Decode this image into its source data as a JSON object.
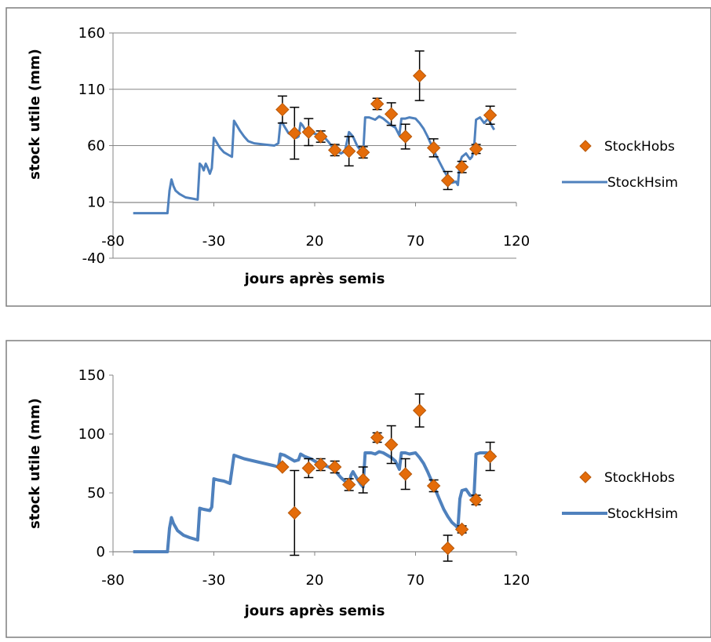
{
  "colors": {
    "obs": "#E46C0A",
    "obs_edge": "#B7580A",
    "sim": "#4F81BD",
    "grid": "#868686",
    "frame": "#7F7F7F",
    "error": "#000000"
  },
  "chart_data": [
    {
      "type": "line",
      "title": "",
      "xlabel": "jours après semis",
      "ylabel": "stock utile (mm)",
      "xlim": [
        -80,
        120
      ],
      "ylim": [
        -40,
        160
      ],
      "xticks": [
        -80,
        -30,
        20,
        70,
        120
      ],
      "yticks": [
        -40,
        10,
        60,
        110,
        160
      ],
      "grid": "horizontal",
      "legend_position": "right",
      "series": [
        {
          "name": "StockHobs",
          "kind": "scatter",
          "points": [
            {
              "x": 4,
              "y": 92,
              "err": 12
            },
            {
              "x": 10,
              "y": 71,
              "err": 23
            },
            {
              "x": 17,
              "y": 72,
              "err": 12
            },
            {
              "x": 23,
              "y": 68,
              "err": 5
            },
            {
              "x": 30,
              "y": 56,
              "err": 5
            },
            {
              "x": 37,
              "y": 55,
              "err": 13
            },
            {
              "x": 44,
              "y": 54,
              "err": 5
            },
            {
              "x": 51,
              "y": 97,
              "err": 5
            },
            {
              "x": 58,
              "y": 88,
              "err": 10
            },
            {
              "x": 65,
              "y": 68,
              "err": 11
            },
            {
              "x": 72,
              "y": 122,
              "err": 22
            },
            {
              "x": 79,
              "y": 58,
              "err": 8
            },
            {
              "x": 86,
              "y": 29,
              "err": 8
            },
            {
              "x": 93,
              "y": 41,
              "err": 5
            },
            {
              "x": 100,
              "y": 57,
              "err": 4
            },
            {
              "x": 107,
              "y": 87,
              "err": 8
            }
          ]
        },
        {
          "name": "StockHsim",
          "kind": "line",
          "points": [
            [
              -70,
              0
            ],
            [
              -53,
              0
            ],
            [
              -52,
              20
            ],
            [
              -51,
              30
            ],
            [
              -50,
              24
            ],
            [
              -49,
              20
            ],
            [
              -47,
              17
            ],
            [
              -44,
              14
            ],
            [
              -41,
              13
            ],
            [
              -38,
              12
            ],
            [
              -37,
              44
            ],
            [
              -36,
              42
            ],
            [
              -35,
              38
            ],
            [
              -34,
              44
            ],
            [
              -33,
              40
            ],
            [
              -32,
              35
            ],
            [
              -31,
              40
            ],
            [
              -30,
              67
            ],
            [
              -29,
              64
            ],
            [
              -27,
              58
            ],
            [
              -25,
              54
            ],
            [
              -23,
              52
            ],
            [
              -21,
              50
            ],
            [
              -20,
              82
            ],
            [
              -19,
              79
            ],
            [
              -17,
              73
            ],
            [
              -15,
              68
            ],
            [
              -13,
              64
            ],
            [
              -10,
              62
            ],
            [
              -5,
              61
            ],
            [
              0,
              60
            ],
            [
              2,
              62
            ],
            [
              3,
              80
            ],
            [
              4,
              80
            ],
            [
              5,
              77
            ],
            [
              7,
              71
            ],
            [
              9,
              69
            ],
            [
              10,
              70
            ],
            [
              11,
              67
            ],
            [
              12,
              68
            ],
            [
              13,
              80
            ],
            [
              14,
              78
            ],
            [
              15,
              75
            ],
            [
              17,
              73
            ],
            [
              19,
              71
            ],
            [
              21,
              70
            ],
            [
              23,
              69
            ],
            [
              25,
              67
            ],
            [
              27,
              63
            ],
            [
              29,
              58
            ],
            [
              31,
              55
            ],
            [
              33,
              53
            ],
            [
              35,
              55
            ],
            [
              37,
              72
            ],
            [
              39,
              68
            ],
            [
              41,
              60
            ],
            [
              43,
              55
            ],
            [
              44,
              52
            ],
            [
              45,
              85
            ],
            [
              47,
              85
            ],
            [
              50,
              83
            ],
            [
              52,
              86
            ],
            [
              54,
              84
            ],
            [
              56,
              81
            ],
            [
              58,
              78
            ],
            [
              60,
              76
            ],
            [
              62,
              69
            ],
            [
              63,
              84
            ],
            [
              65,
              84
            ],
            [
              67,
              85
            ],
            [
              70,
              84
            ],
            [
              72,
              80
            ],
            [
              74,
              75
            ],
            [
              76,
              68
            ],
            [
              78,
              60
            ],
            [
              80,
              52
            ],
            [
              82,
              45
            ],
            [
              84,
              38
            ],
            [
              86,
              32
            ],
            [
              88,
              27
            ],
            [
              90,
              28
            ],
            [
              91,
              25
            ],
            [
              92,
              45
            ],
            [
              93,
              50
            ],
            [
              95,
              53
            ],
            [
              97,
              48
            ],
            [
              98,
              50
            ],
            [
              99,
              57
            ],
            [
              100,
              83
            ],
            [
              102,
              85
            ],
            [
              104,
              80
            ],
            [
              106,
              84
            ],
            [
              108,
              77
            ],
            [
              109,
              74
            ]
          ]
        }
      ]
    },
    {
      "type": "line",
      "title": "",
      "xlabel": "jours après semis",
      "ylabel": "stock utile (mm)",
      "xlim": [
        -80,
        120
      ],
      "ylim": [
        0,
        150
      ],
      "xticks": [
        -80,
        -30,
        20,
        70,
        120
      ],
      "yticks": [
        0,
        50,
        100,
        150
      ],
      "grid": "none",
      "legend_position": "right",
      "series": [
        {
          "name": "StockHobs",
          "kind": "scatter",
          "points": [
            {
              "x": 4,
              "y": 72,
              "err": 0
            },
            {
              "x": 10,
              "y": 33,
              "err": 36
            },
            {
              "x": 17,
              "y": 71,
              "err": 8
            },
            {
              "x": 23,
              "y": 74,
              "err": 5
            },
            {
              "x": 30,
              "y": 72,
              "err": 5
            },
            {
              "x": 37,
              "y": 57,
              "err": 5
            },
            {
              "x": 44,
              "y": 61,
              "err": 11
            },
            {
              "x": 51,
              "y": 97,
              "err": 4
            },
            {
              "x": 58,
              "y": 91,
              "err": 16
            },
            {
              "x": 65,
              "y": 66,
              "err": 13
            },
            {
              "x": 72,
              "y": 120,
              "err": 14
            },
            {
              "x": 79,
              "y": 56,
              "err": 5
            },
            {
              "x": 86,
              "y": 3,
              "err": 11
            },
            {
              "x": 93,
              "y": 19,
              "err": 3
            },
            {
              "x": 100,
              "y": 44,
              "err": 4
            },
            {
              "x": 107,
              "y": 81,
              "err": 12
            }
          ]
        },
        {
          "name": "StockHsim",
          "kind": "line",
          "points": [
            [
              -70,
              0
            ],
            [
              -53,
              0
            ],
            [
              -52,
              20
            ],
            [
              -51,
              29
            ],
            [
              -50,
              24
            ],
            [
              -48,
              18
            ],
            [
              -45,
              14
            ],
            [
              -42,
              12
            ],
            [
              -38,
              10
            ],
            [
              -37,
              37
            ],
            [
              -35,
              36
            ],
            [
              -32,
              35
            ],
            [
              -31,
              38
            ],
            [
              -30,
              62
            ],
            [
              -28,
              61
            ],
            [
              -25,
              60
            ],
            [
              -22,
              58
            ],
            [
              -20,
              82
            ],
            [
              -15,
              79
            ],
            [
              -10,
              77
            ],
            [
              -5,
              75
            ],
            [
              0,
              73
            ],
            [
              2,
              72
            ],
            [
              3,
              83
            ],
            [
              5,
              82
            ],
            [
              8,
              79
            ],
            [
              10,
              77
            ],
            [
              12,
              78
            ],
            [
              13,
              83
            ],
            [
              15,
              81
            ],
            [
              18,
              79
            ],
            [
              20,
              77
            ],
            [
              22,
              75
            ],
            [
              25,
              73
            ],
            [
              27,
              72
            ],
            [
              29,
              70
            ],
            [
              31,
              67
            ],
            [
              33,
              63
            ],
            [
              35,
              60
            ],
            [
              37,
              57
            ],
            [
              38,
              65
            ],
            [
              39,
              68
            ],
            [
              41,
              62
            ],
            [
              43,
              57
            ],
            [
              44,
              55
            ],
            [
              45,
              84
            ],
            [
              48,
              84
            ],
            [
              50,
              83
            ],
            [
              52,
              85
            ],
            [
              54,
              84
            ],
            [
              56,
              82
            ],
            [
              58,
              80
            ],
            [
              60,
              77
            ],
            [
              62,
              70
            ],
            [
              63,
              84
            ],
            [
              65,
              84
            ],
            [
              67,
              83
            ],
            [
              70,
              84
            ],
            [
              72,
              80
            ],
            [
              74,
              75
            ],
            [
              76,
              68
            ],
            [
              78,
              60
            ],
            [
              80,
              52
            ],
            [
              82,
              44
            ],
            [
              84,
              36
            ],
            [
              86,
              30
            ],
            [
              88,
              25
            ],
            [
              90,
              22
            ],
            [
              91,
              20
            ],
            [
              92,
              45
            ],
            [
              93,
              52
            ],
            [
              95,
              53
            ],
            [
              97,
              48
            ],
            [
              99,
              47
            ],
            [
              100,
              83
            ],
            [
              102,
              84
            ],
            [
              105,
              84
            ],
            [
              108,
              83
            ],
            [
              109,
              82
            ]
          ]
        }
      ]
    }
  ]
}
